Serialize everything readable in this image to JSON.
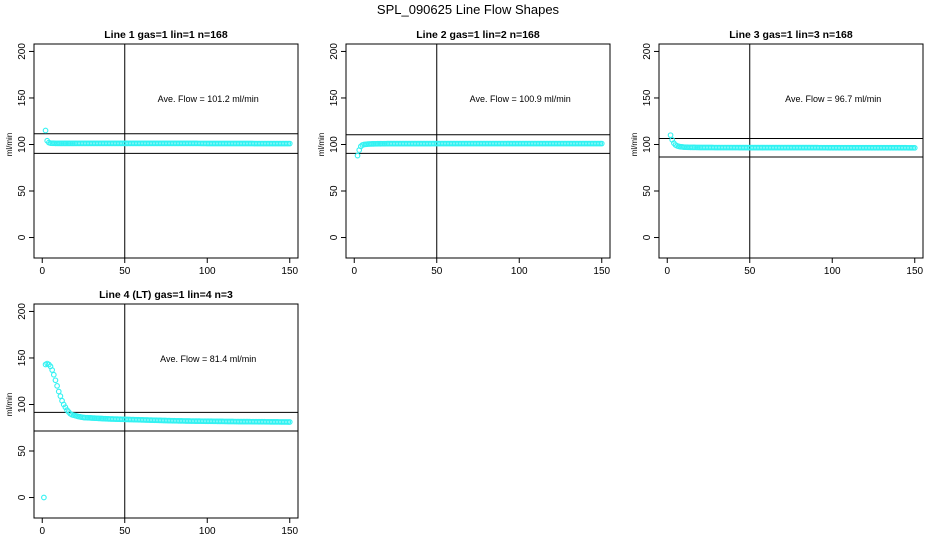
{
  "page": {
    "title": "SPL_090625  Line Flow Shapes"
  },
  "colors": {
    "points": "#33f2f2",
    "axes": "#000000",
    "background": "#ffffff"
  },
  "chart_data": [
    {
      "type": "scatter",
      "title": "Line 1 gas=1 lin=1 n=168",
      "ylabel": "ml/min",
      "xlim": [
        -5,
        155
      ],
      "ylim": [
        -22,
        208
      ],
      "xticks": [
        0,
        50,
        100,
        150
      ],
      "yticks": [
        0,
        50,
        100,
        150,
        200
      ],
      "annotation": "Ave. Flow =  101.2  ml/min",
      "hlines": [
        111.5,
        90.5
      ],
      "vline": 50,
      "series": [
        {
          "x": [
            2,
            3,
            4,
            5,
            6,
            7,
            8,
            10,
            15,
            20,
            30,
            40,
            50,
            60,
            70,
            80,
            90,
            100,
            110,
            120,
            130,
            140,
            150
          ],
          "y": [
            115,
            104,
            102,
            101.5,
            101.3,
            101.3,
            101.2,
            101.2,
            101.2,
            101.2,
            101.2,
            101.2,
            101.2,
            101.2,
            101.2,
            101.2,
            101.2,
            101.1,
            101.1,
            101.1,
            101,
            101,
            101
          ]
        }
      ]
    },
    {
      "type": "scatter",
      "title": "Line 2 gas=1 lin=2 n=168",
      "ylabel": "ml/min",
      "xlim": [
        -5,
        155
      ],
      "ylim": [
        -22,
        208
      ],
      "xticks": [
        0,
        50,
        100,
        150
      ],
      "yticks": [
        0,
        50,
        100,
        150,
        200
      ],
      "annotation": "Ave. Flow =  100.9  ml/min",
      "hlines": [
        110.5,
        90.5
      ],
      "vline": 50,
      "series": [
        {
          "x": [
            2,
            3,
            4,
            5,
            6,
            8,
            10,
            15,
            20,
            30,
            40,
            50,
            60,
            70,
            80,
            90,
            100,
            110,
            120,
            130,
            140,
            150
          ],
          "y": [
            88,
            94,
            98,
            99.5,
            100,
            100.4,
            100.6,
            100.8,
            100.9,
            100.9,
            100.9,
            101,
            101,
            101,
            101,
            101,
            101,
            101,
            101,
            101,
            101,
            101
          ]
        }
      ]
    },
    {
      "type": "scatter",
      "title": "Line 3 gas=1 lin=3 n=168",
      "ylabel": "ml/min",
      "xlim": [
        -5,
        155
      ],
      "ylim": [
        -22,
        208
      ],
      "xticks": [
        0,
        50,
        100,
        150
      ],
      "yticks": [
        0,
        50,
        100,
        150,
        200
      ],
      "annotation": "Ave. Flow =  96.7  ml/min",
      "hlines": [
        106.5,
        86.5
      ],
      "vline": 50,
      "series": [
        {
          "x": [
            2,
            3,
            4,
            5,
            6,
            7,
            8,
            10,
            12,
            15,
            20,
            30,
            40,
            50,
            60,
            70,
            80,
            90,
            100,
            110,
            120,
            130,
            140,
            150
          ],
          "y": [
            110,
            105,
            101.5,
            99.5,
            98.5,
            98,
            97.6,
            97.2,
            97,
            96.9,
            96.8,
            96.7,
            96.7,
            96.6,
            96.6,
            96.6,
            96.6,
            96.6,
            96.5,
            96.5,
            96.5,
            96.5,
            96.5,
            96.4
          ]
        }
      ]
    },
    {
      "type": "scatter",
      "title": "Line 4 (LT) gas=1 lin=4 n=3",
      "ylabel": "ml/min",
      "xlim": [
        -5,
        155
      ],
      "ylim": [
        -22,
        208
      ],
      "xticks": [
        0,
        50,
        100,
        150
      ],
      "yticks": [
        0,
        50,
        100,
        150,
        200
      ],
      "annotation": "Ave. Flow =  81.4  ml/min",
      "hlines": [
        91.5,
        71.5
      ],
      "vline": 50,
      "series": [
        {
          "x": [
            1,
            2,
            3,
            4,
            5,
            6,
            7,
            8,
            9,
            10,
            11,
            12,
            13,
            14,
            15,
            16,
            17,
            18,
            20,
            22,
            25,
            30,
            35,
            40,
            50,
            60,
            70,
            80,
            90,
            100,
            110,
            120,
            130,
            140,
            150
          ],
          "y": [
            0,
            143,
            144,
            143,
            141,
            137,
            132,
            126,
            120,
            114,
            109,
            104,
            100,
            97,
            94,
            92,
            90,
            89,
            88,
            87,
            86,
            85.5,
            85,
            84.5,
            84,
            83.5,
            83,
            82.5,
            82.2,
            82,
            81.8,
            81.6,
            81.5,
            81.3,
            81.2
          ]
        }
      ]
    }
  ]
}
